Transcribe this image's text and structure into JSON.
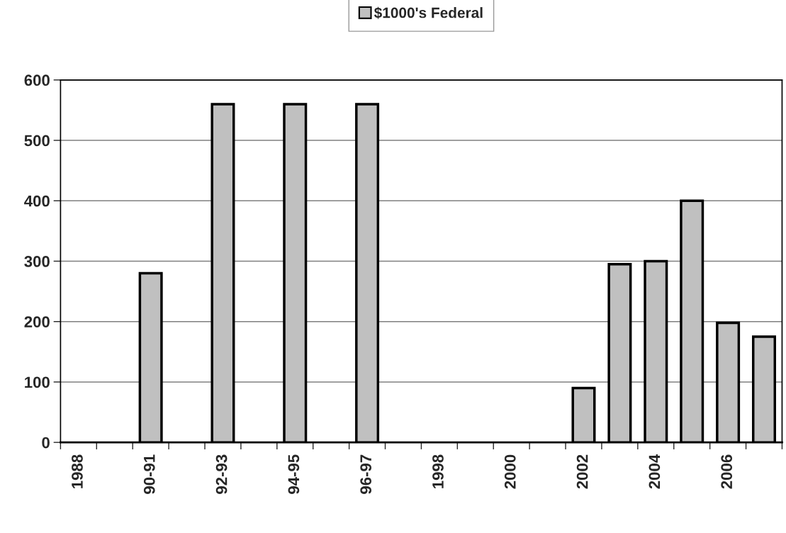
{
  "chart_data": {
    "type": "bar",
    "categories": [
      "1988",
      null,
      "90-91",
      null,
      "92-93",
      null,
      "94-95",
      null,
      "96-97",
      null,
      "1998",
      null,
      "2000",
      null,
      "2002",
      null,
      "2004",
      null,
      "2006",
      null
    ],
    "series": [
      {
        "name": "$1000's Federal",
        "color": "#c0c0c0",
        "values": [
          null,
          null,
          280,
          null,
          560,
          null,
          560,
          null,
          560,
          null,
          null,
          null,
          null,
          null,
          90,
          295,
          300,
          400,
          198,
          175
        ]
      }
    ],
    "ylim": [
      0,
      600
    ],
    "yticks": [
      0,
      100,
      200,
      300,
      400,
      500,
      600
    ],
    "grid": "y",
    "legend": "top"
  }
}
